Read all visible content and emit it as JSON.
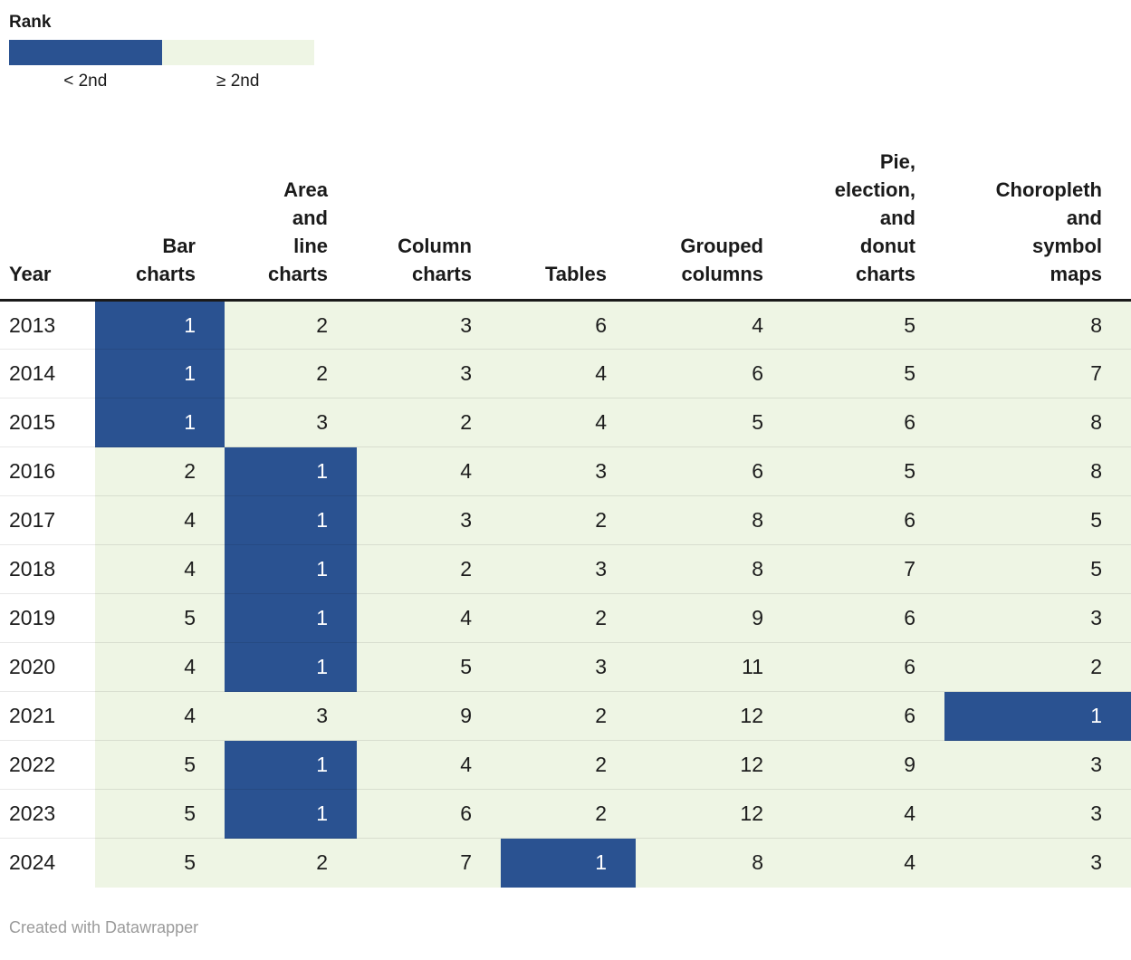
{
  "chart_data": {
    "type": "heatmap",
    "legend": {
      "title": "Rank",
      "items": [
        {
          "label": "< 2nd",
          "color": "#2a5291"
        },
        {
          "label": "≥ 2nd",
          "color": "#eef5e4"
        }
      ]
    },
    "columns": [
      "Year",
      "Bar charts",
      "Area and line charts",
      "Column charts",
      "Tables",
      "Grouped columns",
      "Pie, election, and donut charts",
      "Choropleth and symbol maps"
    ],
    "column_display": [
      "Year",
      "Bar\ncharts",
      "Area\nand\nline\ncharts",
      "Column\ncharts",
      "Tables",
      "Grouped\ncolumns",
      "Pie,\nelection,\nand\ndonut\ncharts",
      "Choropleth\nand\nsymbol\nmaps"
    ],
    "rows": [
      {
        "year": "2013",
        "values": [
          1,
          2,
          3,
          6,
          4,
          5,
          8
        ]
      },
      {
        "year": "2014",
        "values": [
          1,
          2,
          3,
          4,
          6,
          5,
          7
        ]
      },
      {
        "year": "2015",
        "values": [
          1,
          3,
          2,
          4,
          5,
          6,
          8
        ]
      },
      {
        "year": "2016",
        "values": [
          2,
          1,
          4,
          3,
          6,
          5,
          8
        ]
      },
      {
        "year": "2017",
        "values": [
          4,
          1,
          3,
          2,
          8,
          6,
          5
        ]
      },
      {
        "year": "2018",
        "values": [
          4,
          1,
          2,
          3,
          8,
          7,
          5
        ]
      },
      {
        "year": "2019",
        "values": [
          5,
          1,
          4,
          2,
          9,
          6,
          3
        ]
      },
      {
        "year": "2020",
        "values": [
          4,
          1,
          5,
          3,
          11,
          6,
          2
        ]
      },
      {
        "year": "2021",
        "values": [
          4,
          3,
          9,
          2,
          12,
          6,
          1
        ]
      },
      {
        "year": "2022",
        "values": [
          5,
          1,
          4,
          2,
          12,
          9,
          3
        ]
      },
      {
        "year": "2023",
        "values": [
          5,
          1,
          6,
          2,
          12,
          4,
          3
        ]
      },
      {
        "year": "2024",
        "values": [
          5,
          2,
          7,
          1,
          8,
          4,
          3
        ]
      }
    ],
    "highlight": {
      "rule": "cells with rank < 2nd (i.e. rank 1) are filled blue",
      "threshold": 2,
      "highlight_color": "#2a5291",
      "base_color": "#eef5e4"
    }
  },
  "footer": {
    "attribution": "Created with Datawrapper"
  }
}
